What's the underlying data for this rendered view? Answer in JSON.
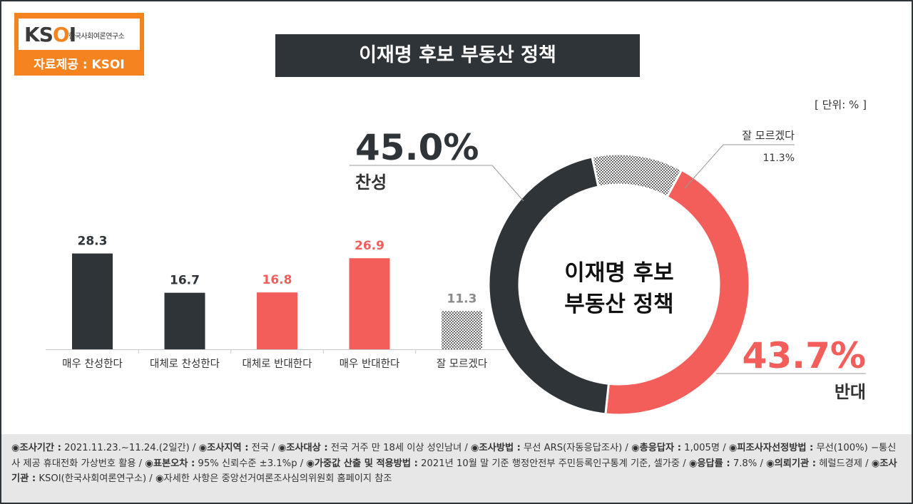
{
  "logo": {
    "mark": "KSOI",
    "subtitle": "한국사회여론연구소",
    "source": "자료제공 : KSOI"
  },
  "title": "이재명 후보 부동산 정책",
  "unit": "[ 단위: % ]",
  "colors": {
    "dark": "#2f3439",
    "red": "#f35d5a",
    "gray_pattern": "#9a9a9a",
    "accent_orange": "#f5831f"
  },
  "chart_data": [
    {
      "type": "bar",
      "categories": [
        "매우 찬성한다",
        "대체로 찬성한다",
        "대체로 반대한다",
        "매우 반대한다",
        "잘 모르겠다"
      ],
      "values": [
        28.3,
        16.7,
        16.8,
        26.9,
        11.3
      ],
      "value_labels": [
        "28.3",
        "16.7",
        "16.8",
        "26.9",
        "11.3"
      ],
      "bar_colors": [
        "#2f3439",
        "#2f3439",
        "#f35d5a",
        "#f35d5a",
        "pattern"
      ],
      "label_colors": [
        "#2f3439",
        "#2f3439",
        "#f35d5a",
        "#f35d5a",
        "#8a8a8a"
      ]
    },
    {
      "type": "pie",
      "variant": "donut",
      "center_label": [
        "이재명 후보",
        "부동산 정책"
      ],
      "slices": [
        {
          "name": "찬성",
          "value": 45.0,
          "label": "45.0%",
          "color": "#2f3439"
        },
        {
          "name": "잘 모르겠다",
          "value": 11.3,
          "label": "11.3%",
          "color": "pattern"
        },
        {
          "name": "반대",
          "value": 43.7,
          "label": "43.7%",
          "color": "#f35d5a"
        }
      ]
    }
  ],
  "footer": {
    "segments": [
      {
        "key": "◉조사기간 :",
        "value": " 2021.11.23.~11.24.(2일간)  / "
      },
      {
        "key": "◉조사지역 :",
        "value": " 전국 / "
      },
      {
        "key": "◉조사대상 :",
        "value": " 전국 거주 만 18세 이상 성인남녀 / "
      },
      {
        "key": "◉조사방법 :",
        "value": " 무선 ARS(자동응답조사) / "
      },
      {
        "key": "◉총응답자 :",
        "value": " 1,005명 / "
      },
      {
        "key": "◉피조사자선정방법 :",
        "value": " 무선(100%) −통신사 제공 휴대전화 가상번호 활용 / "
      },
      {
        "key": "◉표본오차 :",
        "value": " 95% 신뢰수준 ±3.1%p / "
      },
      {
        "key": "◉가중값 산출 및 적용방법 :",
        "value": " 2021년 10월 말 기준 행정안전부 주민등록인구통계 기준, 셀가중 / "
      },
      {
        "key": "◉응답률 :",
        "value": " 7.8% / "
      },
      {
        "key": "◉의뢰기관 :",
        "value": " 헤럴드경제 / "
      },
      {
        "key": "◉조사기관 :",
        "value": " KSOI(한국사회여론연구소) / "
      },
      {
        "key": "",
        "value": "◉자세한 사항은 중앙선거여론조사심의위원회 홈페이지 참조"
      }
    ]
  }
}
